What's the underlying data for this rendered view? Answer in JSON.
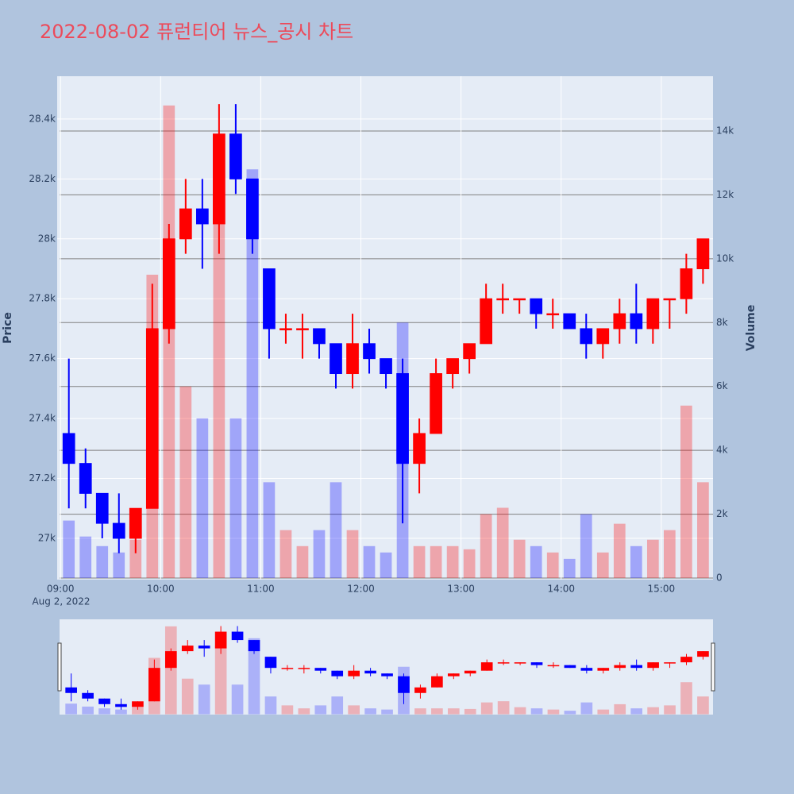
{
  "chart_data": {
    "type": "candlestick",
    "title": "2022-08-02 퓨런티어 뉴스_공시 차트",
    "x": [
      "09:00",
      "09:10",
      "09:20",
      "09:30",
      "09:40",
      "09:50",
      "10:00",
      "10:10",
      "10:20",
      "10:30",
      "10:40",
      "10:50",
      "11:00",
      "11:10",
      "11:20",
      "11:30",
      "11:40",
      "11:50",
      "12:00",
      "12:10",
      "12:20",
      "12:30",
      "12:40",
      "12:50",
      "13:00",
      "13:10",
      "13:20",
      "13:30",
      "13:40",
      "13:50",
      "14:00",
      "14:10",
      "14:20",
      "14:30",
      "14:40",
      "14:50",
      "15:00",
      "15:10",
      "15:20"
    ],
    "open": [
      27350,
      27250,
      27150,
      27050,
      27000,
      27100,
      27700,
      28000,
      28100,
      28050,
      28350,
      28200,
      27900,
      27700,
      27700,
      27700,
      27650,
      27550,
      27650,
      27600,
      27550,
      27250,
      27350,
      27550,
      27600,
      27650,
      27800,
      27800,
      27800,
      27750,
      27750,
      27700,
      27650,
      27700,
      27750,
      27700,
      27800,
      27800,
      27900
    ],
    "high": [
      27600,
      27300,
      27150,
      27150,
      27100,
      27850,
      28050,
      28200,
      28200,
      28450,
      28450,
      28200,
      27900,
      27750,
      27750,
      27700,
      27650,
      27750,
      27700,
      27600,
      27600,
      27400,
      27600,
      27600,
      27650,
      27850,
      27850,
      27800,
      27800,
      27800,
      27750,
      27750,
      27700,
      27800,
      27850,
      27800,
      27800,
      27950,
      28000
    ],
    "low": [
      27100,
      27100,
      27000,
      26950,
      26950,
      27100,
      27650,
      27950,
      27900,
      27950,
      28150,
      27950,
      27600,
      27650,
      27600,
      27600,
      27500,
      27500,
      27550,
      27500,
      27050,
      27150,
      27350,
      27500,
      27550,
      27650,
      27750,
      27750,
      27700,
      27700,
      27700,
      27600,
      27600,
      27650,
      27650,
      27650,
      27700,
      27750,
      27850
    ],
    "close": [
      27250,
      27150,
      27050,
      27000,
      27100,
      27700,
      28000,
      28100,
      28050,
      28350,
      28200,
      28000,
      27700,
      27700,
      27700,
      27650,
      27550,
      27650,
      27600,
      27550,
      27250,
      27350,
      27550,
      27600,
      27650,
      27800,
      27800,
      27800,
      27750,
      27750,
      27700,
      27650,
      27700,
      27750,
      27700,
      27800,
      27800,
      27900,
      28000
    ],
    "volume": [
      1800,
      1300,
      1000,
      800,
      1200,
      9500,
      14800,
      6000,
      5000,
      11500,
      5000,
      12800,
      3000,
      1500,
      1000,
      1500,
      3000,
      1500,
      1000,
      800,
      8000,
      1000,
      1000,
      1000,
      900,
      2000,
      2200,
      1200,
      1000,
      800,
      600,
      2000,
      800,
      1700,
      1000,
      1200,
      1500,
      5400,
      3000
    ],
    "increasing_color": "#ff0000",
    "decreasing_color": "#0000ff",
    "ylabel": "Price",
    "y2label": "Volume",
    "xdate": "Aug 2, 2022",
    "xlim": [
      "08:58",
      "15:31"
    ],
    "xticks": [
      "09:00",
      "10:00",
      "11:00",
      "12:00",
      "13:00",
      "14:00",
      "15:00"
    ],
    "ylim": [
      26862,
      28543
    ],
    "yticks": [
      {
        "value": 27000,
        "label": "27k"
      },
      {
        "value": 27200,
        "label": "27.2k"
      },
      {
        "value": 27400,
        "label": "27.4k"
      },
      {
        "value": 27600,
        "label": "27.6k"
      },
      {
        "value": 27800,
        "label": "27.8k"
      },
      {
        "value": 28000,
        "label": "28k"
      },
      {
        "value": 28200,
        "label": "28.2k"
      },
      {
        "value": 28400,
        "label": "28.4k"
      }
    ],
    "y2lim": [
      -50,
      15716
    ],
    "y2ticks": [
      0,
      {
        "value": 2000,
        "label": "2k"
      },
      {
        "value": 4000,
        "label": "4k"
      },
      {
        "value": 6000,
        "label": "6k"
      },
      {
        "value": 8000,
        "label": "8k"
      },
      {
        "value": 10000,
        "label": "10k"
      },
      {
        "value": 12000,
        "label": "12k"
      },
      {
        "value": 14000,
        "label": "14k"
      }
    ],
    "rangeslider": true
  }
}
